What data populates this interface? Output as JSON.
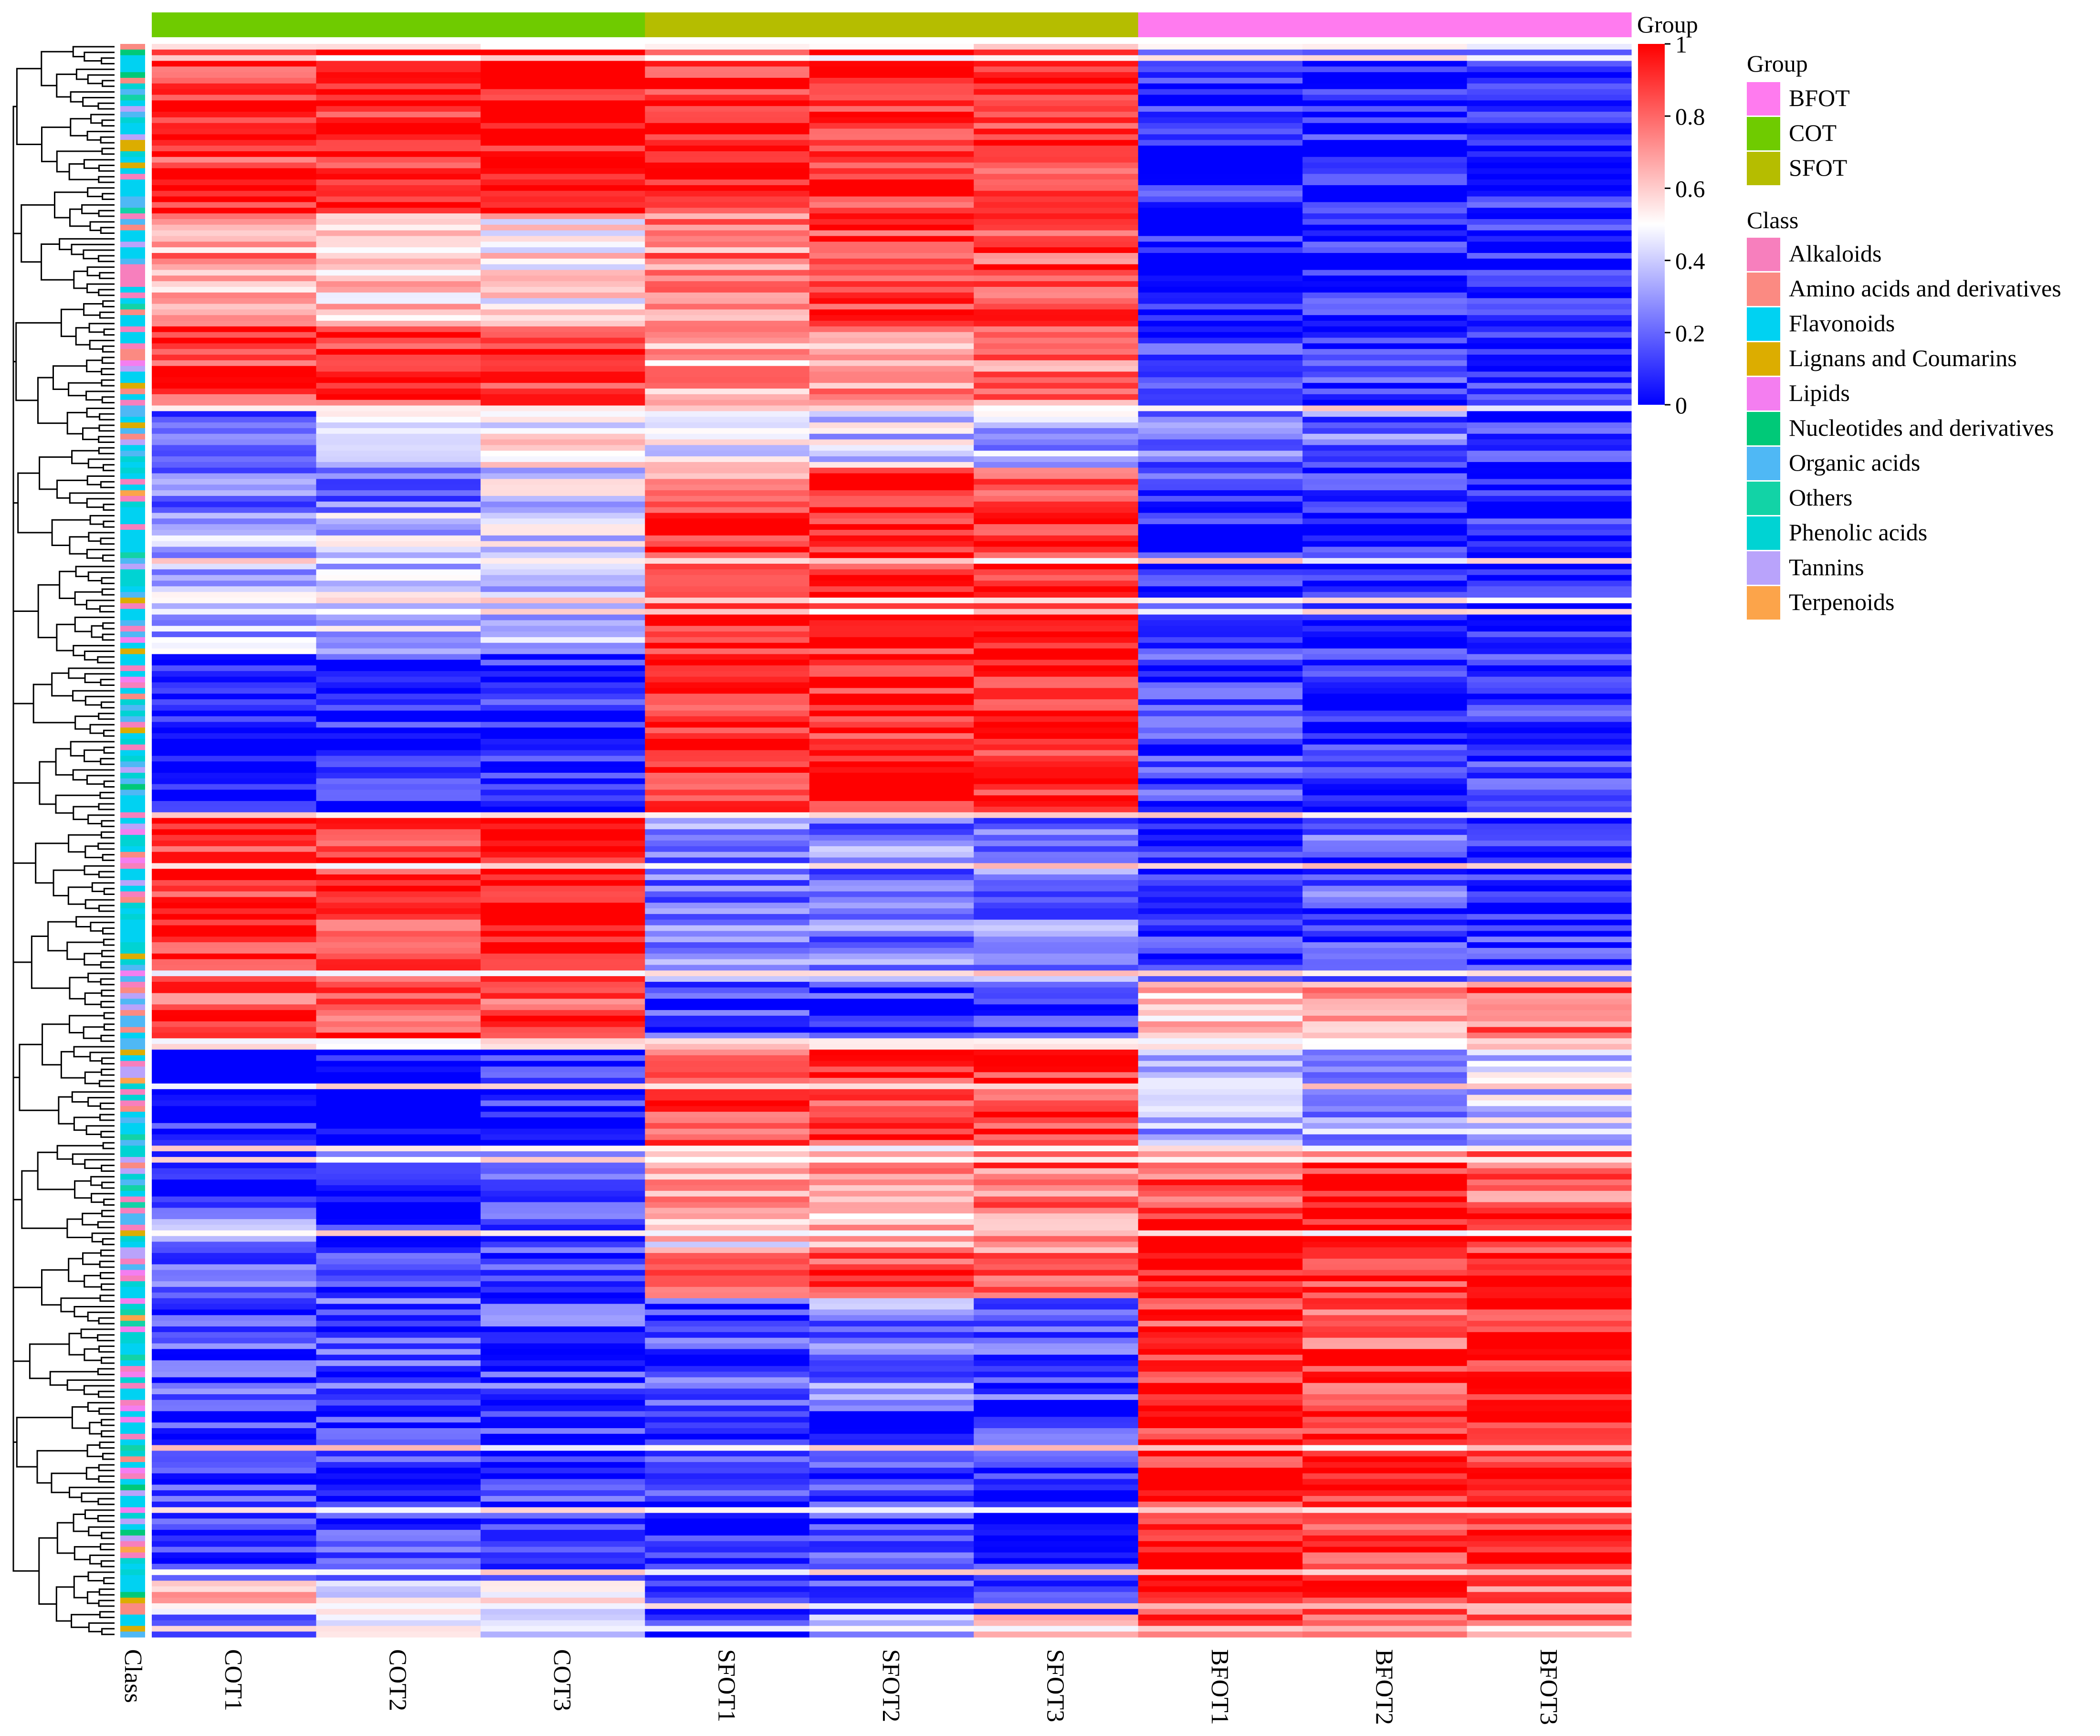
{
  "chart_data": {
    "type": "heatmap",
    "title": "",
    "columns": [
      "COT1",
      "COT2",
      "COT3",
      "SFOT1",
      "SFOT2",
      "SFOT3",
      "BFOT1",
      "BFOT2",
      "BFOT3"
    ],
    "column_groups": [
      "COT",
      "COT",
      "COT",
      "SFOT",
      "SFOT",
      "SFOT",
      "BFOT",
      "BFOT",
      "BFOT"
    ],
    "row_annotation_label": "Class",
    "column_annotation_label": "Group",
    "color_scale": {
      "min": 0,
      "max": 1,
      "colors": [
        "#0000ff",
        "#ffffff",
        "#ff0000"
      ],
      "ticks": [
        "0",
        "0.2",
        "0.4",
        "0.6",
        "0.8",
        "1"
      ]
    },
    "row_blocks": [
      {
        "rows": 30,
        "values": [
          0.9,
          0.95,
          0.95,
          0.92,
          0.9,
          0.92,
          0.05,
          0.05,
          0.05
        ]
      },
      {
        "rows": 20,
        "values": [
          0.7,
          0.6,
          0.55,
          0.75,
          0.9,
          0.85,
          0.05,
          0.05,
          0.05
        ]
      },
      {
        "rows": 15,
        "values": [
          0.9,
          0.9,
          0.9,
          0.65,
          0.7,
          0.75,
          0.1,
          0.1,
          0.05
        ]
      },
      {
        "rows": 10,
        "values": [
          0.2,
          0.4,
          0.5,
          0.5,
          0.4,
          0.35,
          0.2,
          0.2,
          0.1
        ]
      },
      {
        "rows": 8,
        "values": [
          0.25,
          0.25,
          0.4,
          0.7,
          0.95,
          0.8,
          0.1,
          0.1,
          0.05
        ]
      },
      {
        "rows": 25,
        "values": [
          0.35,
          0.4,
          0.4,
          0.95,
          0.95,
          0.92,
          0.05,
          0.05,
          0.05
        ]
      },
      {
        "rows": 28,
        "values": [
          0.05,
          0.05,
          0.05,
          0.95,
          0.95,
          0.95,
          0.1,
          0.05,
          0.1
        ]
      },
      {
        "rows": 30,
        "values": [
          0.92,
          0.9,
          0.95,
          0.25,
          0.25,
          0.25,
          0.1,
          0.15,
          0.1
        ]
      },
      {
        "rows": 12,
        "values": [
          0.85,
          0.85,
          0.88,
          0.1,
          0.1,
          0.1,
          0.6,
          0.7,
          0.8
        ]
      },
      {
        "rows": 18,
        "values": [
          0.05,
          0.05,
          0.05,
          0.9,
          0.9,
          0.92,
          0.3,
          0.3,
          0.4
        ]
      },
      {
        "rows": 10,
        "values": [
          0.05,
          0.1,
          0.1,
          0.7,
          0.75,
          0.8,
          0.85,
          0.9,
          0.8
        ]
      },
      {
        "rows": 8,
        "values": [
          0.25,
          0.05,
          0.1,
          0.55,
          0.65,
          0.65,
          0.95,
          0.95,
          0.9
        ]
      },
      {
        "rows": 8,
        "values": [
          0.15,
          0.1,
          0.1,
          0.85,
          0.85,
          0.8,
          0.95,
          0.9,
          0.95
        ]
      },
      {
        "rows": 20,
        "values": [
          0.15,
          0.15,
          0.15,
          0.15,
          0.25,
          0.15,
          0.9,
          0.85,
          0.95
        ]
      },
      {
        "rows": 30,
        "values": [
          0.1,
          0.1,
          0.1,
          0.1,
          0.1,
          0.1,
          0.95,
          0.92,
          0.95
        ]
      },
      {
        "rows": 6,
        "values": [
          0.6,
          0.5,
          0.55,
          0.15,
          0.15,
          0.1,
          0.9,
          0.9,
          0.8
        ]
      },
      {
        "rows": 4,
        "values": [
          0.1,
          0.4,
          0.45,
          0.1,
          0.3,
          0.75,
          0.9,
          0.85,
          0.8
        ]
      }
    ]
  },
  "legend": {
    "group": {
      "title": "Group",
      "items": [
        {
          "label": "BFOT",
          "color": "#ff7bef"
        },
        {
          "label": "COT",
          "color": "#6fcb00"
        },
        {
          "label": "SFOT",
          "color": "#b5bd00"
        }
      ]
    },
    "class": {
      "title": "Class",
      "items": [
        {
          "label": "Alkaloids",
          "color": "#f77fbd"
        },
        {
          "label": "Amino acids and derivatives",
          "color": "#fb8a82"
        },
        {
          "label": "Flavonoids",
          "color": "#00d2f2"
        },
        {
          "label": "Lignans and Coumarins",
          "color": "#dcad00"
        },
        {
          "label": "Lipids",
          "color": "#f47ef0"
        },
        {
          "label": "Nucleotides and derivatives",
          "color": "#00c978"
        },
        {
          "label": "Organic acids",
          "color": "#4fb8f5"
        },
        {
          "label": "Others",
          "color": "#12d3a6"
        },
        {
          "label": "Phenolic acids",
          "color": "#00d3d3"
        },
        {
          "label": "Tannins",
          "color": "#b9a3fb"
        },
        {
          "label": "Terpenoids",
          "color": "#fca44a"
        }
      ]
    }
  },
  "colorbar_title": "Group"
}
